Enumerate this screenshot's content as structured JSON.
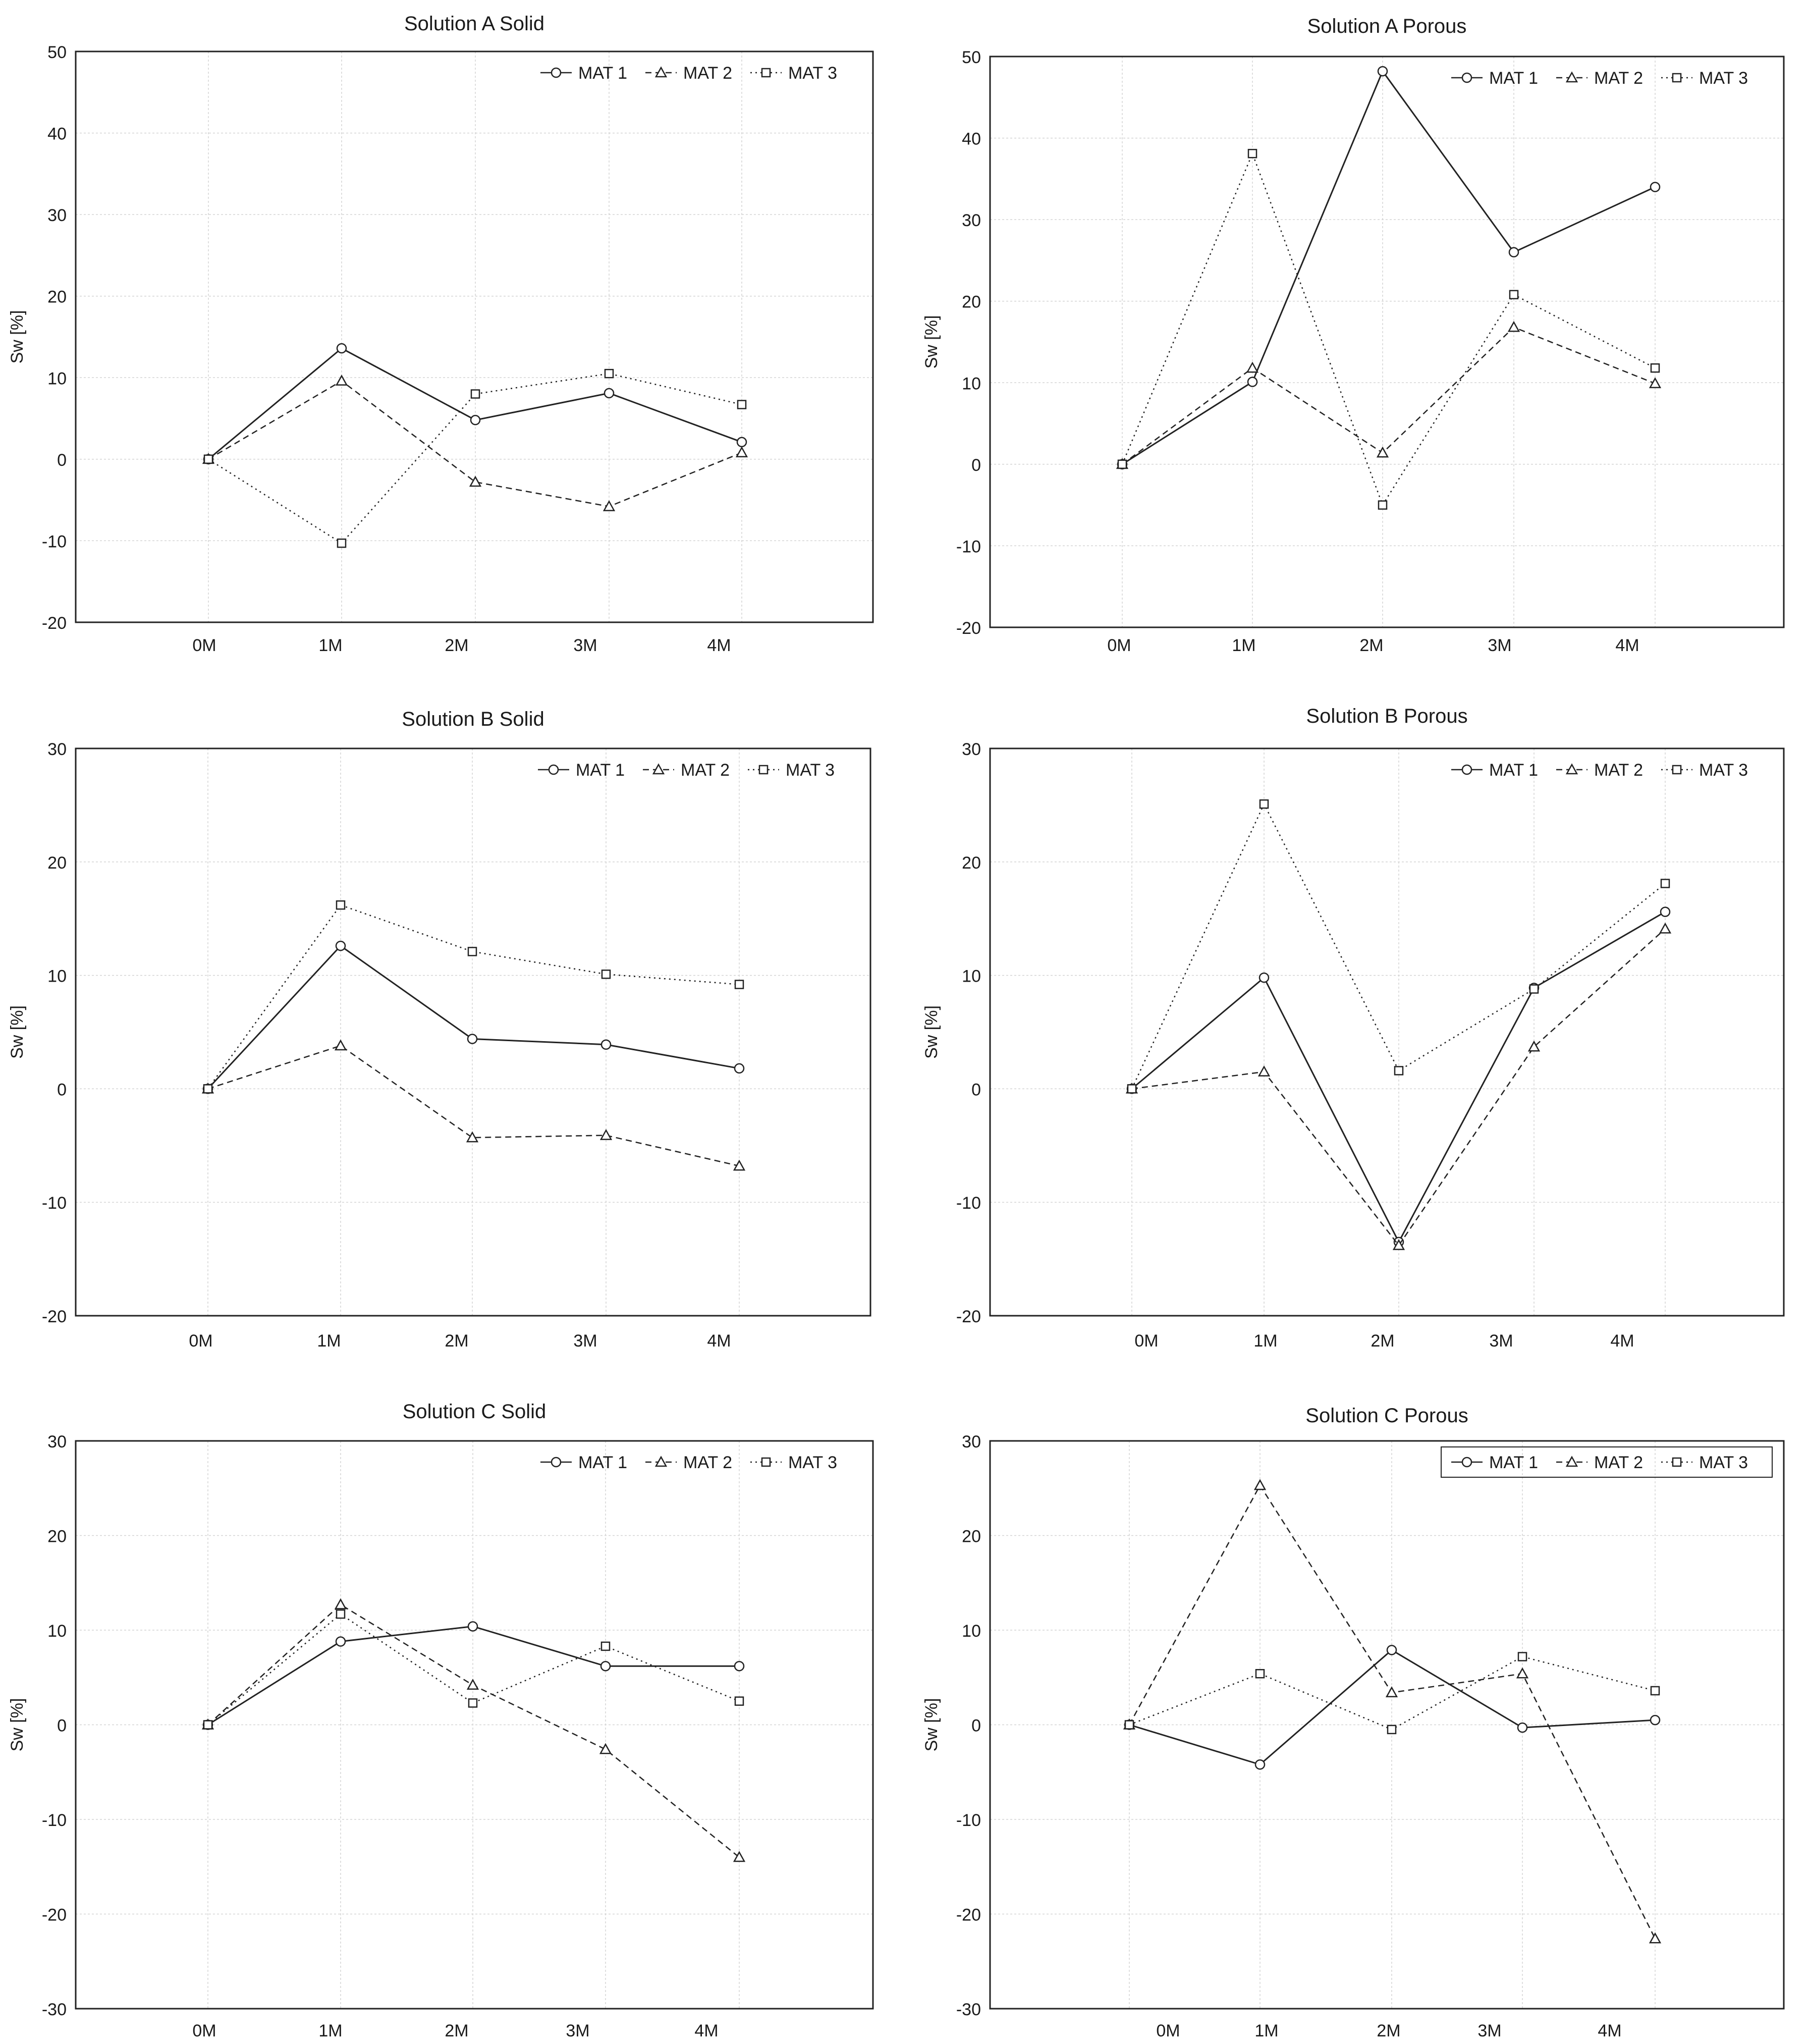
{
  "figure": {
    "x_label_common": [
      "0M",
      "1M",
      "2M",
      "3M",
      "4M"
    ]
  },
  "chart_data": [
    {
      "type": "line",
      "title": "Solution A Solid",
      "xlabel": "",
      "ylabel": "Sw [%]",
      "categories": [
        "0M",
        "1M",
        "2M",
        "3M",
        "4M"
      ],
      "ylim": [
        -20,
        50
      ],
      "yticks": [
        -20,
        -10,
        0,
        10,
        20,
        30,
        40,
        50
      ],
      "grid": true,
      "legend_position": "top-right",
      "series": [
        {
          "name": "MAT 1",
          "marker": "circle",
          "dash": "solid",
          "values": [
            0,
            13.6,
            4.8,
            8.1,
            2.1
          ]
        },
        {
          "name": "MAT 2",
          "marker": "triangle",
          "dash": "dashed",
          "values": [
            0,
            9.6,
            -2.8,
            -5.8,
            0.8
          ]
        },
        {
          "name": "MAT 3",
          "marker": "square",
          "dash": "dotted",
          "values": [
            0,
            -10.3,
            8.0,
            10.5,
            6.7
          ]
        }
      ]
    },
    {
      "type": "line",
      "title": "Solution A Porous",
      "xlabel": "",
      "ylabel": "Sw [%]",
      "categories": [
        "0M",
        "1M",
        "2M",
        "3M",
        "4M"
      ],
      "ylim": [
        -20,
        50
      ],
      "yticks": [
        -20,
        -10,
        0,
        10,
        20,
        30,
        40,
        50
      ],
      "grid": true,
      "legend_position": "top-right",
      "series": [
        {
          "name": "MAT 1",
          "marker": "circle",
          "dash": "solid",
          "values": [
            0,
            10.1,
            48.2,
            26.0,
            34.0
          ]
        },
        {
          "name": "MAT 2",
          "marker": "triangle",
          "dash": "dashed",
          "values": [
            0,
            11.8,
            1.4,
            16.8,
            9.9
          ]
        },
        {
          "name": "MAT 3",
          "marker": "square",
          "dash": "dotted",
          "values": [
            0,
            38.1,
            -5.0,
            20.8,
            11.8
          ]
        }
      ]
    },
    {
      "type": "line",
      "title": "Solution B Solid",
      "xlabel": "",
      "ylabel": "Sw [%]",
      "categories": [
        "0M",
        "1M",
        "2M",
        "3M",
        "4M"
      ],
      "ylim": [
        -20,
        30
      ],
      "yticks": [
        -20,
        -10,
        0,
        10,
        20,
        30
      ],
      "grid": true,
      "legend_position": "top-right",
      "series": [
        {
          "name": "MAT 1",
          "marker": "circle",
          "dash": "solid",
          "values": [
            0,
            12.6,
            4.4,
            3.9,
            1.8
          ]
        },
        {
          "name": "MAT 2",
          "marker": "triangle",
          "dash": "dashed",
          "values": [
            0,
            3.8,
            -4.3,
            -4.1,
            -6.8
          ]
        },
        {
          "name": "MAT 3",
          "marker": "square",
          "dash": "dotted",
          "values": [
            0,
            16.2,
            12.1,
            10.1,
            9.2
          ]
        }
      ]
    },
    {
      "type": "line",
      "title": "Solution B Porous",
      "xlabel": "",
      "ylabel": "Sw [%]",
      "categories": [
        "0M",
        "1M",
        "2M",
        "3M",
        "4M"
      ],
      "ylim": [
        -20,
        30
      ],
      "yticks": [
        -20,
        -10,
        0,
        10,
        20,
        30
      ],
      "grid": true,
      "legend_position": "top-right",
      "series": [
        {
          "name": "MAT 1",
          "marker": "circle",
          "dash": "solid",
          "values": [
            0,
            9.8,
            -13.5,
            8.9,
            15.6
          ]
        },
        {
          "name": "MAT 2",
          "marker": "triangle",
          "dash": "dashed",
          "values": [
            0,
            1.5,
            -13.8,
            3.7,
            14.1
          ]
        },
        {
          "name": "MAT 3",
          "marker": "square",
          "dash": "dotted",
          "values": [
            0,
            25.1,
            1.6,
            8.8,
            18.1
          ]
        }
      ]
    },
    {
      "type": "line",
      "title": "Solution C Solid",
      "xlabel": "",
      "ylabel": "Sw [%]",
      "categories": [
        "0M",
        "1M",
        "2M",
        "3M",
        "4M"
      ],
      "ylim": [
        -30,
        30
      ],
      "yticks": [
        -30,
        -20,
        -10,
        0,
        10,
        20,
        30
      ],
      "grid": true,
      "legend_position": "top-right",
      "series": [
        {
          "name": "MAT 1",
          "marker": "circle",
          "dash": "solid",
          "values": [
            0,
            8.8,
            10.4,
            6.2,
            6.2
          ]
        },
        {
          "name": "MAT 2",
          "marker": "triangle",
          "dash": "dashed",
          "values": [
            0,
            12.7,
            4.2,
            -2.6,
            -14.0
          ]
        },
        {
          "name": "MAT 3",
          "marker": "square",
          "dash": "dotted",
          "values": [
            0,
            11.7,
            2.3,
            8.3,
            2.5
          ]
        }
      ]
    },
    {
      "type": "line",
      "title": "Solution C Porous",
      "xlabel": "",
      "ylabel": "Sw [%]",
      "categories": [
        "0M",
        "1M",
        "2M",
        "3M",
        "4M"
      ],
      "ylim": [
        -30,
        30
      ],
      "yticks": [
        -30,
        -20,
        -10,
        0,
        10,
        20,
        30
      ],
      "grid": true,
      "legend_position": "top-right",
      "series": [
        {
          "name": "MAT 1",
          "marker": "circle",
          "dash": "solid",
          "values": [
            0,
            -4.2,
            7.9,
            -0.3,
            0.5
          ]
        },
        {
          "name": "MAT 2",
          "marker": "triangle",
          "dash": "dashed",
          "values": [
            0,
            25.3,
            3.4,
            5.4,
            -22.6
          ]
        },
        {
          "name": "MAT 3",
          "marker": "square",
          "dash": "dotted",
          "values": [
            0,
            5.4,
            -0.5,
            7.2,
            3.6
          ]
        }
      ]
    }
  ]
}
